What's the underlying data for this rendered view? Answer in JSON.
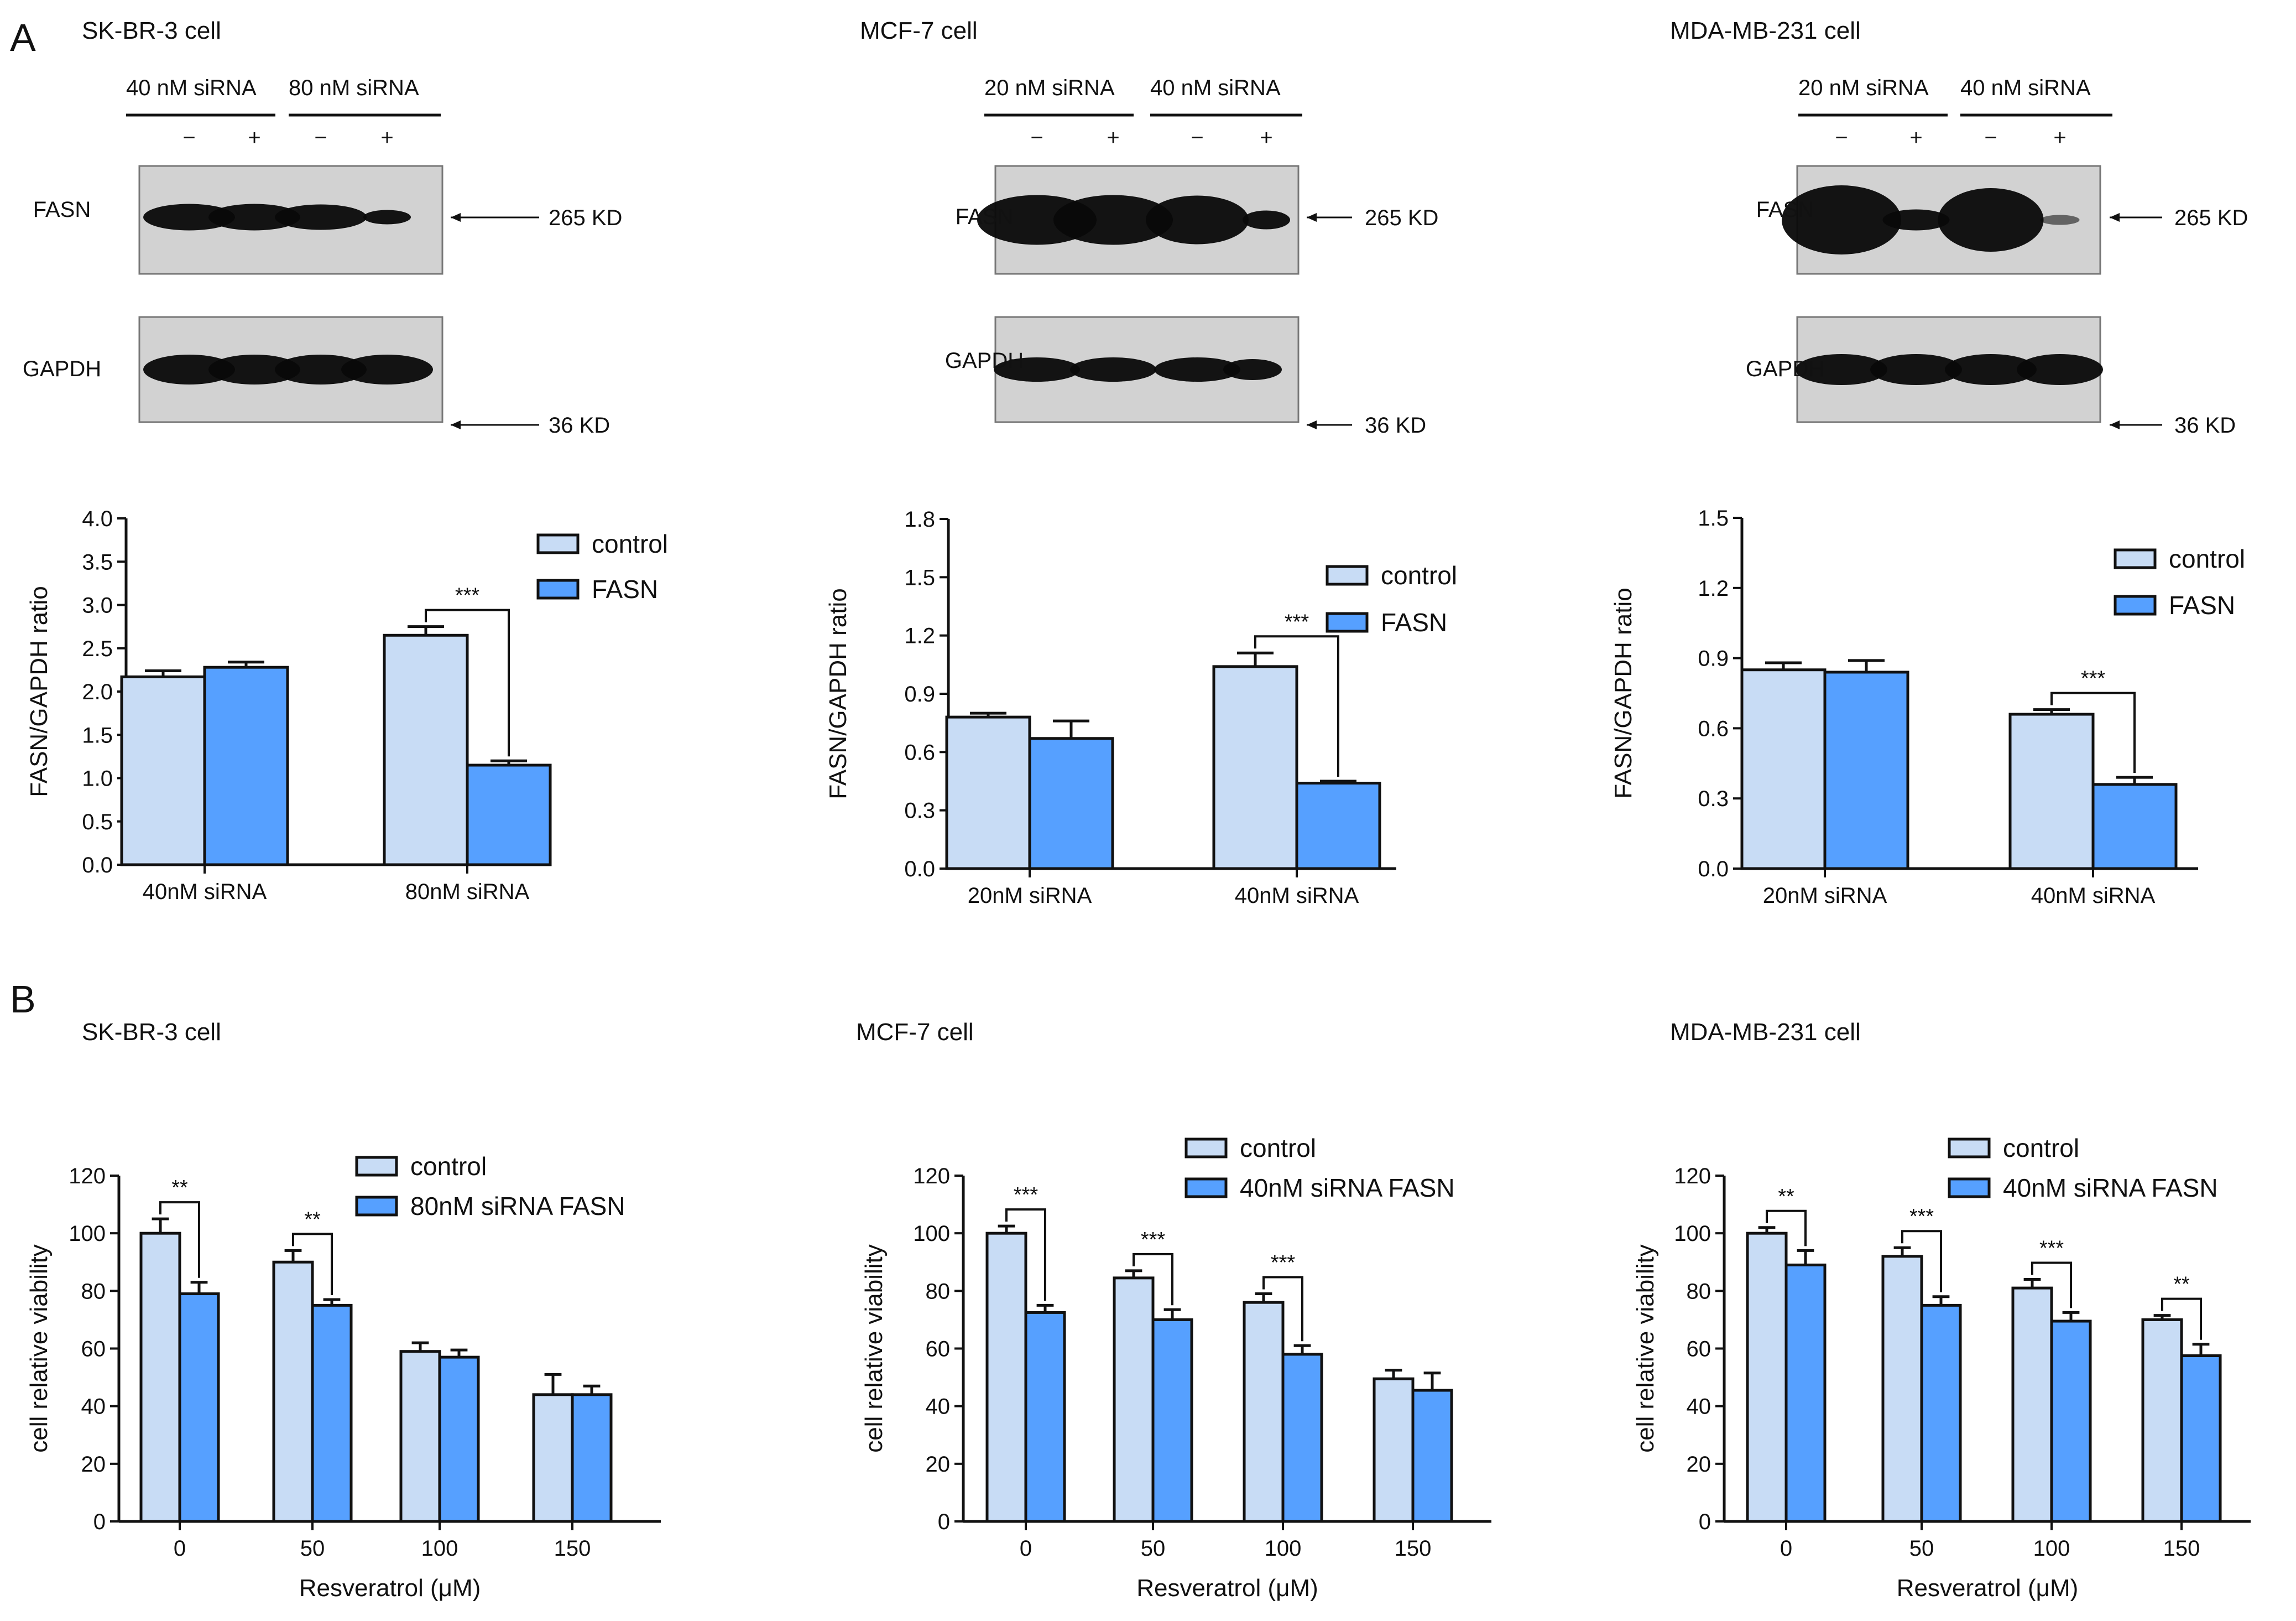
{
  "panel_labels": {
    "a": "A",
    "b": "B"
  },
  "colors": {
    "control": "#c8dcf5",
    "treated": "#56a0ff",
    "blot_bg": "#d2d2d2",
    "band": "#080808",
    "axis": "#111111"
  },
  "blots": [
    {
      "cell": "SK-BR-3 cell",
      "groups": [
        "40 nM siRNA",
        "80 nM siRNA"
      ],
      "lane_signs": [
        "−",
        "+",
        "−",
        "+"
      ],
      "rows": [
        {
          "protein": "FASN",
          "size": "265 KD"
        },
        {
          "protein": "GAPDH",
          "size": "36 KD"
        }
      ]
    },
    {
      "cell": "MCF-7 cell",
      "groups": [
        "20 nM siRNA",
        "40 nM siRNA"
      ],
      "lane_signs": [
        "−",
        "+",
        "−",
        "+"
      ],
      "rows": [
        {
          "protein": "FASN",
          "size": "265 KD"
        },
        {
          "protein": "GAPDH",
          "size": "36 KD"
        }
      ]
    },
    {
      "cell": "MDA-MB-231 cell",
      "groups": [
        "20 nM siRNA",
        "40 nM siRNA"
      ],
      "lane_signs": [
        "−",
        "+",
        "−",
        "+"
      ],
      "rows": [
        {
          "protein": "FASN",
          "size": "265 KD"
        },
        {
          "protein": "GAPDH",
          "size": "36 KD"
        }
      ]
    }
  ],
  "b_titles": [
    "SK-BR-3 cell",
    "MCF-7 cell",
    "MDA-MB-231 cell"
  ],
  "chart_data": [
    {
      "type": "bar",
      "title": "",
      "ylabel": "FASN/GAPDH ratio",
      "xlabel": "",
      "ylim": [
        0,
        4.0
      ],
      "yticks": [
        "0.0",
        "0.5",
        "1.0",
        "1.5",
        "2.0",
        "2.5",
        "3.0",
        "3.5",
        "4.0"
      ],
      "categories": [
        "40nM siRNA",
        "80nM siRNA"
      ],
      "legend_position": "top-right",
      "series": [
        {
          "name": "control",
          "values": [
            2.17,
            2.65
          ],
          "errors": [
            0.07,
            0.1
          ]
        },
        {
          "name": "FASN",
          "values": [
            2.28,
            1.15
          ],
          "errors": [
            0.06,
            0.05
          ]
        }
      ],
      "significance": [
        {
          "category": 1,
          "label": "***"
        }
      ]
    },
    {
      "type": "bar",
      "title": "",
      "ylabel": "FASN/GAPDH ratio",
      "xlabel": "",
      "ylim": [
        0,
        1.8
      ],
      "yticks": [
        "0.0",
        "0.3",
        "0.6",
        "0.9",
        "1.2",
        "1.5",
        "1.8"
      ],
      "categories": [
        "20nM siRNA",
        "40nM siRNA"
      ],
      "legend_position": "top-right",
      "series": [
        {
          "name": "control",
          "values": [
            0.78,
            1.04
          ],
          "errors": [
            0.02,
            0.07
          ]
        },
        {
          "name": "FASN",
          "values": [
            0.67,
            0.44
          ],
          "errors": [
            0.09,
            0.01
          ]
        }
      ],
      "significance": [
        {
          "category": 1,
          "label": "***"
        }
      ]
    },
    {
      "type": "bar",
      "title": "",
      "ylabel": "FASN/GAPDH ratio",
      "xlabel": "",
      "ylim": [
        0,
        1.5
      ],
      "yticks": [
        "0.0",
        "0.3",
        "0.6",
        "0.9",
        "1.2",
        "1.5"
      ],
      "categories": [
        "20nM siRNA",
        "40nM siRNA"
      ],
      "legend_position": "top-right",
      "series": [
        {
          "name": "control",
          "values": [
            0.85,
            0.66
          ],
          "errors": [
            0.03,
            0.02
          ]
        },
        {
          "name": "FASN",
          "values": [
            0.84,
            0.36
          ],
          "errors": [
            0.05,
            0.03
          ]
        }
      ],
      "significance": [
        {
          "category": 1,
          "label": "***"
        }
      ]
    },
    {
      "type": "bar",
      "title": "",
      "ylabel": "cell relative viability",
      "xlabel": "Resveratrol (μM)",
      "ylim": [
        0,
        120
      ],
      "yticks": [
        "0",
        "20",
        "40",
        "60",
        "80",
        "100",
        "120"
      ],
      "categories": [
        "0",
        "50",
        "100",
        "150"
      ],
      "legend_position": "top-right",
      "series": [
        {
          "name": "control",
          "values": [
            100,
            90,
            59,
            44
          ],
          "errors": [
            5,
            4,
            3,
            7
          ]
        },
        {
          "name": "80nM siRNA FASN",
          "values": [
            79,
            75,
            57,
            44
          ],
          "errors": [
            4,
            2,
            2.5,
            3
          ]
        }
      ],
      "significance": [
        {
          "category": 0,
          "label": "**"
        },
        {
          "category": 1,
          "label": "**"
        }
      ]
    },
    {
      "type": "bar",
      "title": "",
      "ylabel": "cell relative viability",
      "xlabel": "Resveratrol (μM)",
      "ylim": [
        0,
        120
      ],
      "yticks": [
        "0",
        "20",
        "40",
        "60",
        "80",
        "100",
        "120"
      ],
      "categories": [
        "0",
        "50",
        "100",
        "150"
      ],
      "legend_position": "top-right",
      "series": [
        {
          "name": "control",
          "values": [
            100,
            84.5,
            76,
            49.5
          ],
          "errors": [
            2.5,
            2.5,
            3,
            3
          ]
        },
        {
          "name": "40nM siRNA FASN",
          "values": [
            72.5,
            70,
            58,
            45.5
          ],
          "errors": [
            2.5,
            3.5,
            3,
            6
          ]
        }
      ],
      "significance": [
        {
          "category": 0,
          "label": "***"
        },
        {
          "category": 1,
          "label": "***"
        },
        {
          "category": 2,
          "label": "***"
        }
      ]
    },
    {
      "type": "bar",
      "title": "",
      "ylabel": "cell relative viability",
      "xlabel": "Resveratrol (μM)",
      "ylim": [
        0,
        120
      ],
      "yticks": [
        "0",
        "20",
        "40",
        "60",
        "80",
        "100",
        "120"
      ],
      "categories": [
        "0",
        "50",
        "100",
        "150"
      ],
      "legend_position": "top-right",
      "series": [
        {
          "name": "control",
          "values": [
            100,
            92,
            81,
            70
          ],
          "errors": [
            2,
            3,
            3,
            1.5
          ]
        },
        {
          "name": "40nM siRNA FASN",
          "values": [
            89,
            75,
            69.5,
            57.5
          ],
          "errors": [
            5,
            3,
            3,
            4
          ]
        }
      ],
      "significance": [
        {
          "category": 0,
          "label": "**"
        },
        {
          "category": 1,
          "label": "***"
        },
        {
          "category": 2,
          "label": "***"
        },
        {
          "category": 3,
          "label": "**"
        }
      ]
    }
  ]
}
